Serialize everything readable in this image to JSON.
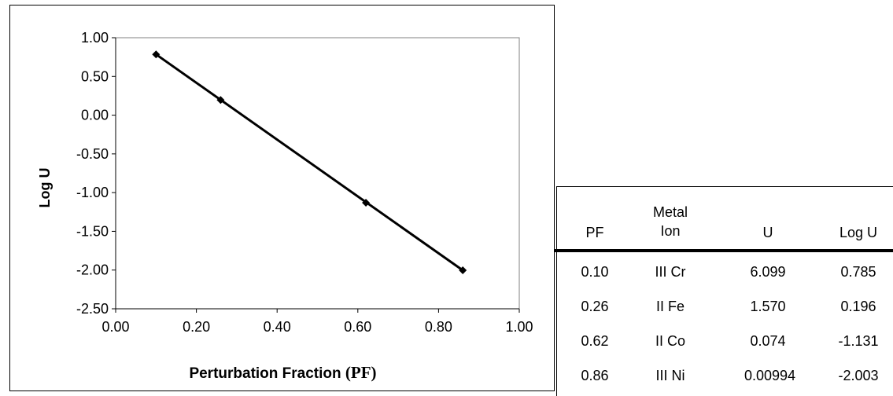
{
  "chart_data": {
    "type": "scatter",
    "title": "",
    "xlabel": "Perturbation Fraction",
    "xlabel_suffix": "(PF)",
    "ylabel": "Log U",
    "xlim": [
      0.0,
      1.0
    ],
    "ylim": [
      -2.5,
      1.0
    ],
    "x_ticks": [
      "0.00",
      "0.20",
      "0.40",
      "0.60",
      "0.80",
      "1.00"
    ],
    "y_ticks": [
      "1.00",
      "0.50",
      "0.00",
      "-0.50",
      "-1.00",
      "-1.50",
      "-2.00",
      "-2.50"
    ],
    "grid": false,
    "legend": "none",
    "series": [
      {
        "x": [
          0.1,
          0.26,
          0.62,
          0.86
        ],
        "y": [
          0.785,
          0.196,
          -1.131,
          -2.003
        ]
      }
    ],
    "trendline": {
      "x": [
        0.1,
        0.86
      ],
      "y": [
        0.785,
        -2.003
      ]
    },
    "colors": {
      "line": "#000000",
      "marker": "#000000"
    }
  },
  "table": {
    "headers": [
      "PF",
      "Metal\nIon",
      "U",
      "Log U"
    ],
    "rows": [
      [
        "0.10",
        "III Cr",
        "6.099",
        "0.785"
      ],
      [
        "0.26",
        "II Fe",
        "1.570",
        "0.196"
      ],
      [
        "0.62",
        "II Co",
        "0.074",
        "-1.131"
      ],
      [
        "0.86",
        "III Ni",
        "0.00994",
        "-2.003"
      ]
    ]
  }
}
